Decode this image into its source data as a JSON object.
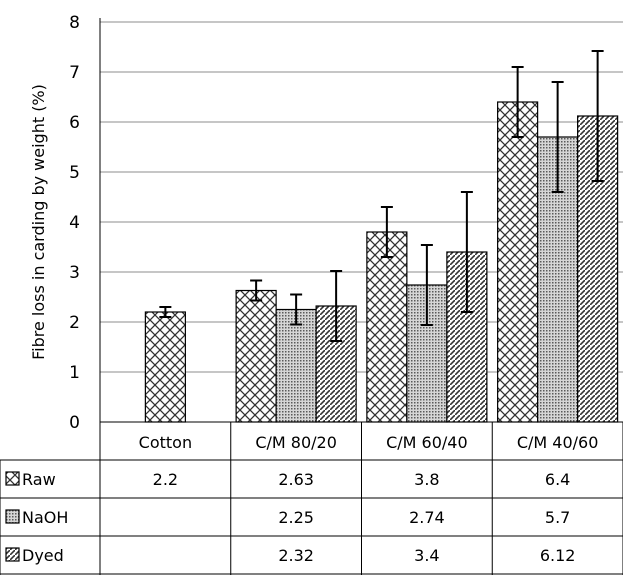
{
  "chart_data": {
    "type": "bar",
    "ylabel": "Fibre loss in carding by weight (%)",
    "ylim": [
      0,
      8
    ],
    "yticks": [
      0,
      1,
      2,
      3,
      4,
      5,
      6,
      7,
      8
    ],
    "grid": true,
    "legend": "data table rows",
    "categories": [
      "Cotton",
      "C/M 80/20",
      "C/M 60/40",
      "C/M 40/60"
    ],
    "series": [
      {
        "name": "Raw",
        "pattern": "crosshatch",
        "values": [
          2.2,
          2.63,
          3.8,
          6.4
        ],
        "labels": [
          "2.2",
          "2.63",
          "3.8",
          "6.4"
        ],
        "error": [
          0.1,
          0.2,
          0.5,
          0.7
        ]
      },
      {
        "name": "NaOH",
        "pattern": "fine-grid",
        "values": [
          null,
          2.25,
          2.74,
          5.7
        ],
        "labels": [
          "",
          "2.25",
          "2.74",
          "5.7"
        ],
        "error": [
          null,
          0.3,
          0.8,
          1.1
        ]
      },
      {
        "name": "Dyed",
        "pattern": "diagonal",
        "values": [
          null,
          2.32,
          3.4,
          6.12
        ],
        "labels": [
          "",
          "2.32",
          "3.4",
          "6.12"
        ],
        "error": [
          null,
          0.7,
          1.2,
          1.3
        ]
      }
    ]
  }
}
